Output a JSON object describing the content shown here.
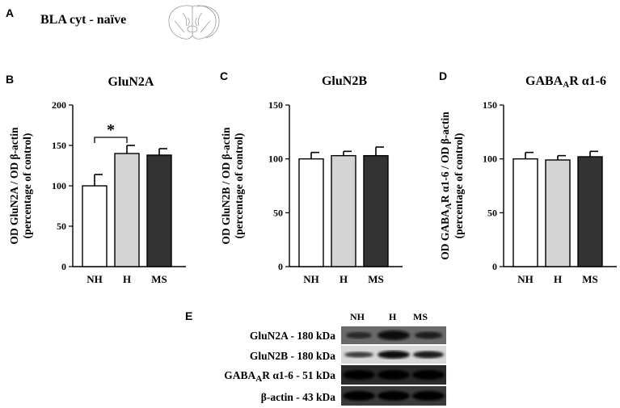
{
  "panels": {
    "a": "A",
    "b": "B",
    "c": "C",
    "d": "D",
    "e": "E"
  },
  "header_title": "BLA cyt - naïve",
  "brain_icon": "brain-section-icon",
  "chart_data": [
    {
      "type": "bar",
      "title": "GluN2A",
      "ylabel_line1": "OD GluN2A / OD β-actin",
      "ylabel_line2": "(percentage of control)",
      "categories": [
        "NH",
        "H",
        "MS"
      ],
      "values": [
        100,
        140,
        138
      ],
      "errors": [
        14,
        10,
        8
      ],
      "fill_colors": [
        "#ffffff",
        "#d4d4d4",
        "#333333"
      ],
      "ylim": [
        0,
        200
      ],
      "yticks": [
        0,
        50,
        100,
        150,
        200
      ],
      "significance": {
        "from": 0,
        "to": 1,
        "label": "*"
      }
    },
    {
      "type": "bar",
      "title": "GluN2B",
      "ylabel_line1": "OD GluN2B / OD β-actin",
      "ylabel_line2": "(percentage of control)",
      "categories": [
        "NH",
        "H",
        "MS"
      ],
      "values": [
        100,
        103,
        103
      ],
      "errors": [
        6,
        4,
        8
      ],
      "fill_colors": [
        "#ffffff",
        "#d4d4d4",
        "#333333"
      ],
      "ylim": [
        0,
        150
      ],
      "yticks": [
        0,
        50,
        100,
        150
      ]
    },
    {
      "type": "bar",
      "title_main": "GABA",
      "title_sub": "A",
      "title_rest": "R α1-6",
      "ylabel_line1_main": "OD GABA",
      "ylabel_line1_sub": "A",
      "ylabel_line1_rest": "R α1-6 / OD β-actin",
      "ylabel_line2": "(percentage of control)",
      "categories": [
        "NH",
        "H",
        "MS"
      ],
      "values": [
        100,
        99,
        102
      ],
      "errors": [
        6,
        4,
        5
      ],
      "fill_colors": [
        "#ffffff",
        "#d4d4d4",
        "#333333"
      ],
      "ylim": [
        0,
        150
      ],
      "yticks": [
        0,
        50,
        100,
        150
      ]
    }
  ],
  "blot": {
    "lanes": [
      "NH",
      "H",
      "MS"
    ],
    "rows": [
      {
        "label": "GluN2A - 180 kDa"
      },
      {
        "label": "GluN2B - 180 kDa"
      },
      {
        "label_main": "GABA",
        "label_sub": "A",
        "label_rest": "R α1-6 - 51 kDa"
      },
      {
        "label": "β-actin - 43 kDa"
      }
    ]
  }
}
